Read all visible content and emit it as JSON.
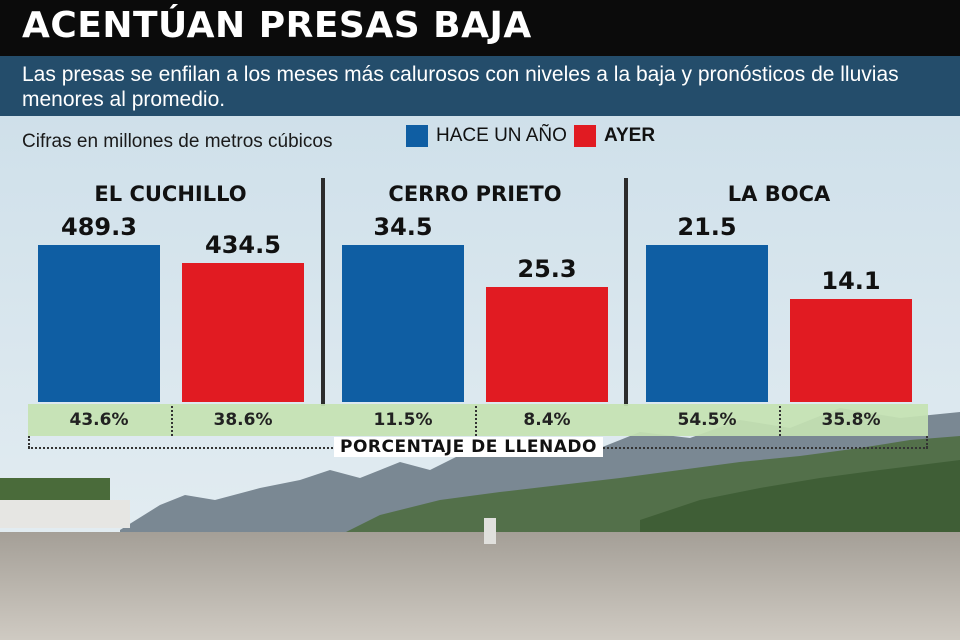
{
  "header": {
    "title": "ACENTÚAN PRESAS BAJA",
    "subtitle": "Las presas se enfilan a los meses más calurosos con niveles a la baja y pronósticos de lluvias menores al promedio.",
    "units_note": "Cifras en millones de metros cúbicos"
  },
  "legend": [
    {
      "label": "HACE UN AÑO",
      "color": "#0f5ea3"
    },
    {
      "label": "AYER",
      "color": "#e11b22"
    }
  ],
  "percent_caption": "PORCENTAJE DE LLENADO",
  "chart_data": {
    "type": "bar",
    "title": "ACENTÚAN PRESAS BAJA",
    "ylabel": "Cifras en millones de metros cúbicos",
    "categories": [
      "EL CUCHILLO",
      "CERRO PRIETO",
      "LA BOCA"
    ],
    "series": [
      {
        "name": "HACE UN AÑO",
        "color": "#0f5ea3",
        "values": [
          489.3,
          34.5,
          21.5
        ],
        "labels": [
          "489.3",
          "34.5",
          "21.5"
        ],
        "percent_labels": [
          "43.6%",
          "11.5%",
          "54.5%"
        ]
      },
      {
        "name": "AYER",
        "color": "#e11b22",
        "values": [
          434.5,
          25.3,
          14.1
        ],
        "labels": [
          "434.5",
          "25.3",
          "14.1"
        ],
        "percent_labels": [
          "38.6%",
          "8.4%",
          "35.8%"
        ]
      }
    ],
    "independent_scales": true,
    "legend_position": "top"
  }
}
